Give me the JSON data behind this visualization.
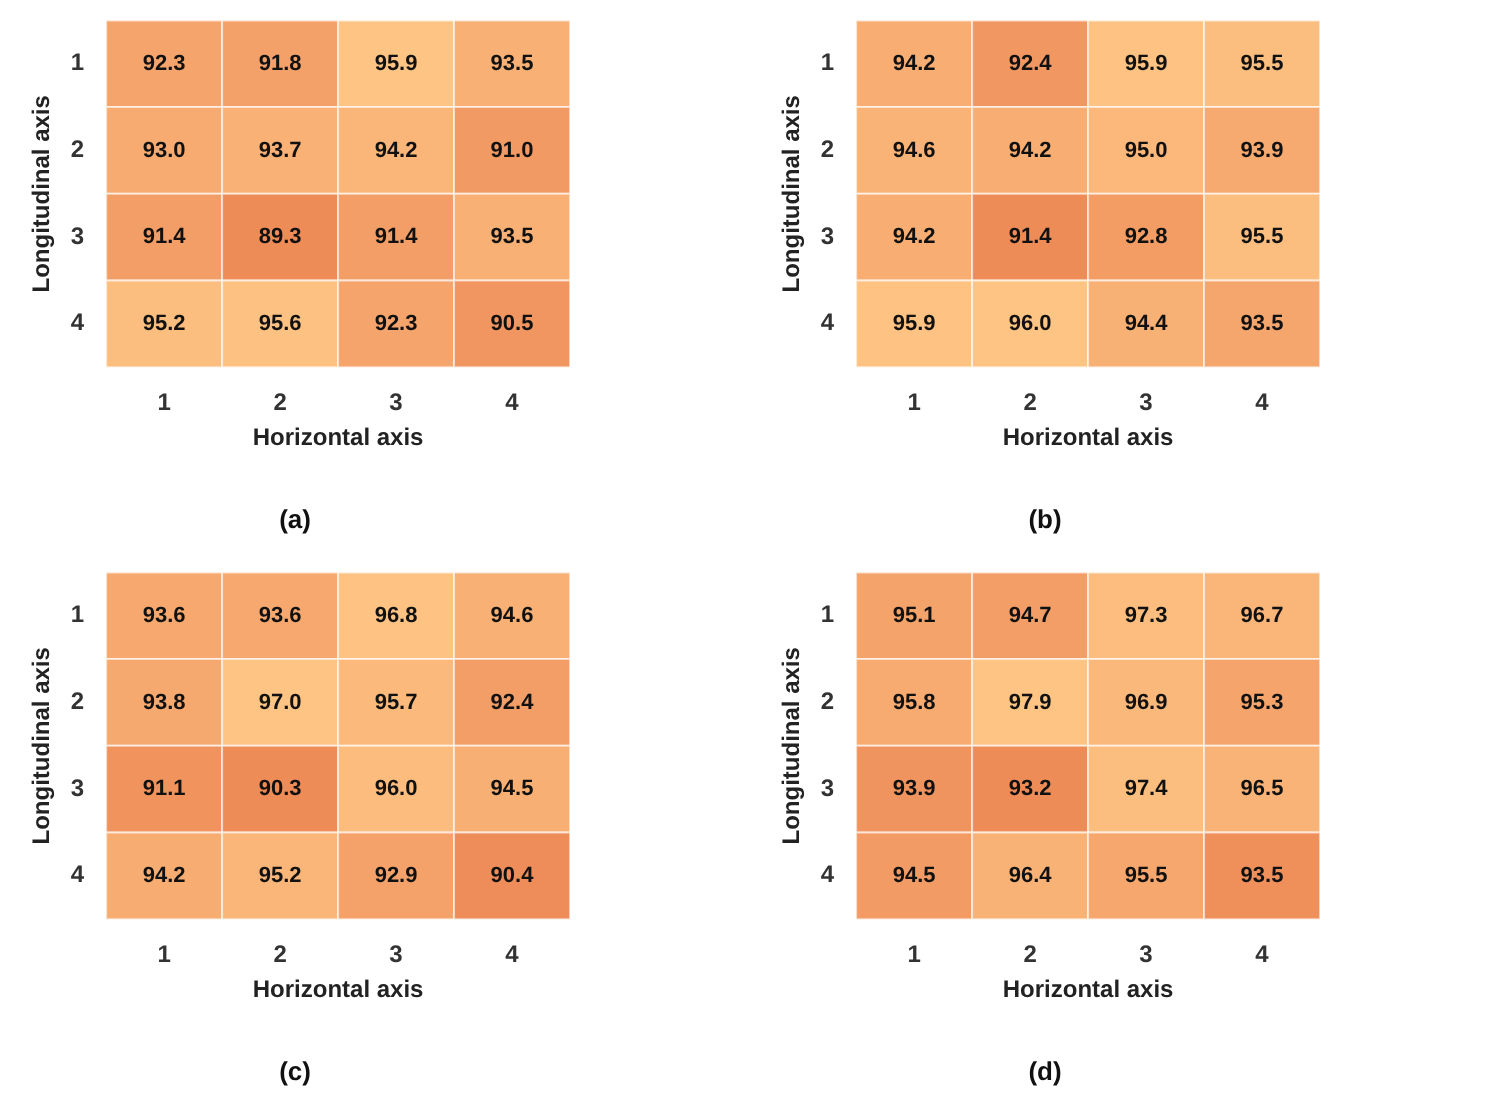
{
  "chart_data": [
    {
      "type": "heatmap",
      "title": "(a)",
      "xlabel": "Horizontal axis",
      "ylabel": "Longitudinal axis",
      "categories": [
        "1",
        "2",
        "3",
        "4"
      ],
      "y_categories": [
        "1",
        "2",
        "3",
        "4"
      ],
      "data_labels": true,
      "cells": [
        [
          92.3,
          91.8,
          95.9,
          93.5
        ],
        [
          93.0,
          93.7,
          94.2,
          91.0
        ],
        [
          91.4,
          89.3,
          91.4,
          93.5
        ],
        [
          95.2,
          95.6,
          92.3,
          90.5
        ]
      ],
      "cell_labels": [
        [
          "92.3",
          "91.8",
          "95.9",
          "93.5"
        ],
        [
          "93.0",
          "93.7",
          "94.2",
          "91.0"
        ],
        [
          "91.4",
          "89.3",
          "91.4",
          "93.5"
        ],
        [
          "95.2",
          "95.6",
          "92.3",
          "90.5"
        ]
      ]
    },
    {
      "type": "heatmap",
      "title": "(b)",
      "xlabel": "Horizontal axis",
      "ylabel": "Longitudinal axis",
      "categories": [
        "1",
        "2",
        "3",
        "4"
      ],
      "y_categories": [
        "1",
        "2",
        "3",
        "4"
      ],
      "data_labels": true,
      "cells": [
        [
          94.2,
          92.4,
          95.9,
          95.5
        ],
        [
          94.6,
          94.2,
          95.0,
          93.9
        ],
        [
          94.2,
          91.4,
          92.8,
          95.5
        ],
        [
          95.9,
          96.0,
          94.4,
          93.5
        ]
      ],
      "cell_labels": [
        [
          "94.2",
          "92.4",
          "95.9",
          "95.5"
        ],
        [
          "94.6",
          "94.2",
          "95.0",
          "93.9"
        ],
        [
          "94.2",
          "91.4",
          "92.8",
          "95.5"
        ],
        [
          "95.9",
          "96.0",
          "94.4",
          "93.5"
        ]
      ]
    },
    {
      "type": "heatmap",
      "title": "(c)",
      "xlabel": "Horizontal axis",
      "ylabel": "Longitudinal axis",
      "categories": [
        "1",
        "2",
        "3",
        "4"
      ],
      "y_categories": [
        "1",
        "2",
        "3",
        "4"
      ],
      "data_labels": true,
      "cells": [
        [
          93.6,
          93.6,
          96.8,
          94.6
        ],
        [
          93.8,
          97.0,
          95.7,
          92.4
        ],
        [
          91.1,
          90.3,
          96.0,
          94.5
        ],
        [
          94.2,
          95.2,
          92.9,
          90.4
        ]
      ],
      "cell_labels": [
        [
          "93.6",
          "93.6",
          "96.8",
          "94.6"
        ],
        [
          "93.8",
          "97.0",
          "95.7",
          "92.4"
        ],
        [
          "91.1",
          "90.3",
          "96.0",
          "94.5"
        ],
        [
          "94.2",
          "95.2",
          "92.9",
          "90.4"
        ]
      ]
    },
    {
      "type": "heatmap",
      "title": "(d)",
      "xlabel": "Horizontal axis",
      "ylabel": "Longitudinal axis",
      "categories": [
        "1",
        "2",
        "3",
        "4"
      ],
      "y_categories": [
        "1",
        "2",
        "3",
        "4"
      ],
      "data_labels": true,
      "cells": [
        [
          95.1,
          94.7,
          97.3,
          96.7
        ],
        [
          95.8,
          97.9,
          96.9,
          95.3
        ],
        [
          93.9,
          93.2,
          97.4,
          96.5
        ],
        [
          94.5,
          96.4,
          95.5,
          93.5
        ]
      ],
      "cell_labels": [
        [
          "95.1",
          "94.7",
          "97.3",
          "96.7"
        ],
        [
          "95.8",
          "97.9",
          "96.9",
          "95.3"
        ],
        [
          "93.9",
          "93.2",
          "97.4",
          "96.5"
        ],
        [
          "94.5",
          "96.4",
          "95.5",
          "93.5"
        ]
      ]
    }
  ]
}
